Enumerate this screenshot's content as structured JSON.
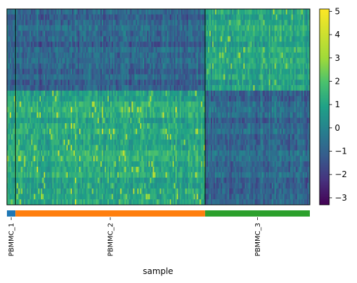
{
  "chart_data": {
    "type": "heatmap",
    "xlabel": "sample",
    "groups": [
      {
        "name": "PBMMC_1",
        "color": "#1f77b4",
        "size": 6
      },
      {
        "name": "PBMMC_2",
        "color": "#ff7f0e",
        "size": 134
      },
      {
        "name": "PBMMC_3",
        "color": "#2ca02c",
        "size": 74
      }
    ],
    "n_genes": 36,
    "colorbar": {
      "min": -3.3,
      "max": 5.1,
      "ticks": [
        -3,
        -2,
        -1,
        0,
        1,
        2,
        3,
        4,
        5
      ],
      "colormap": "viridis"
    }
  }
}
